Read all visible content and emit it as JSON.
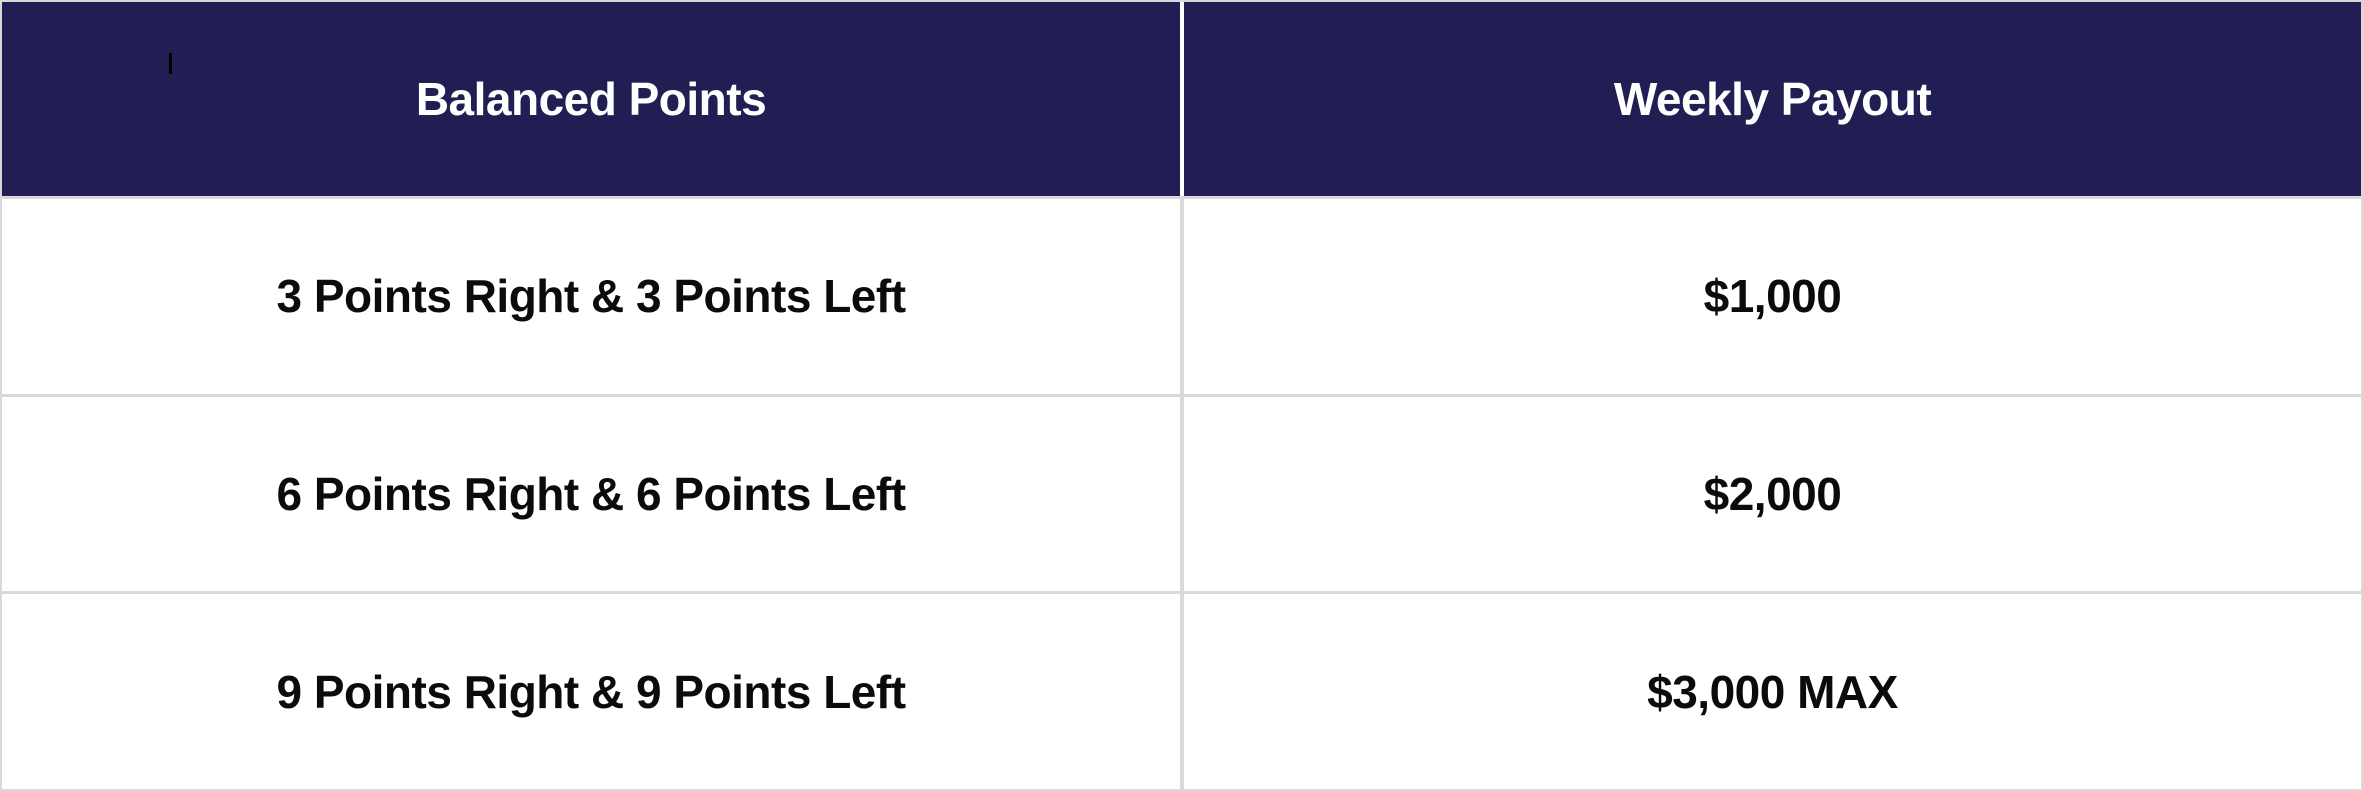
{
  "chart_data": {
    "type": "table",
    "title": "",
    "columns": [
      "Balanced Points",
      "Weekly Payout"
    ],
    "rows": [
      [
        "3 Points Right & 3 Points Left",
        "$1,000"
      ],
      [
        "6 Points Right & 6 Points Left",
        "$2,000"
      ],
      [
        "9 Points Right & 9 Points Left",
        "$3,000 MAX"
      ]
    ]
  },
  "editor": {
    "caret_visible": true
  },
  "colors": {
    "header_bg": "#211E54",
    "header_text": "#FFFFFF",
    "body_text": "#0B0B0B",
    "grid_line": "#D9D9D9",
    "header_divider": "#FFFFFF",
    "row_bg": "#FFFFFF",
    "caret": "#000000"
  }
}
